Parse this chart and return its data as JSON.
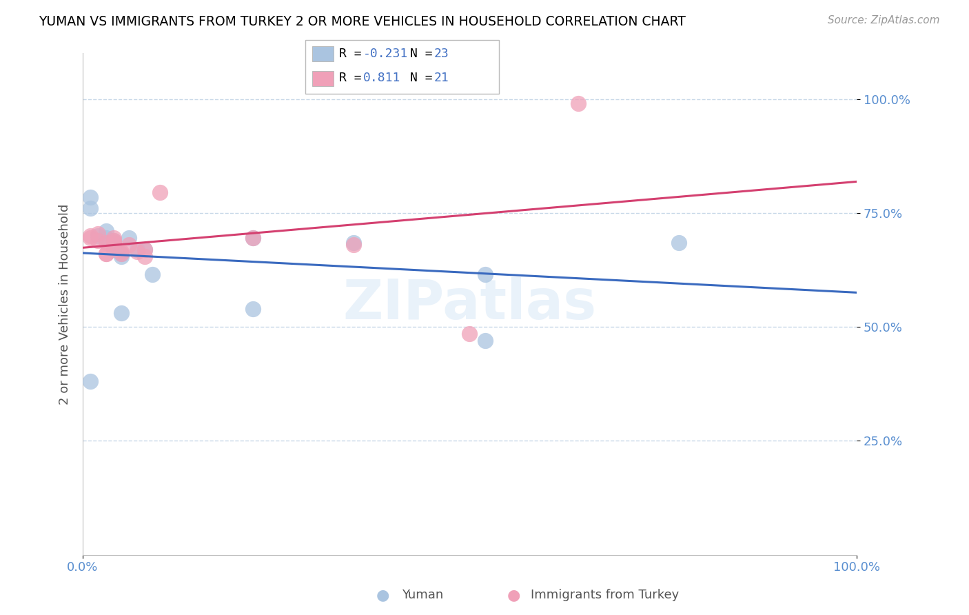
{
  "title": "YUMAN VS IMMIGRANTS FROM TURKEY 2 OR MORE VEHICLES IN HOUSEHOLD CORRELATION CHART",
  "source": "Source: ZipAtlas.com",
  "ylabel": "2 or more Vehicles in Household",
  "ytick_labels": [
    "25.0%",
    "50.0%",
    "75.0%",
    "100.0%"
  ],
  "ytick_values": [
    0.25,
    0.5,
    0.75,
    1.0
  ],
  "legend_r": [
    -0.231,
    0.811
  ],
  "legend_n": [
    23,
    21
  ],
  "blue_color": "#aac4e0",
  "pink_color": "#f0a0b8",
  "blue_line_color": "#3a6abf",
  "pink_line_color": "#d44070",
  "yuman_x": [
    0.01,
    0.01,
    0.02,
    0.03,
    0.03,
    0.04,
    0.04,
    0.04,
    0.04,
    0.05,
    0.05,
    0.06,
    0.07,
    0.08,
    0.09,
    0.22,
    0.35,
    0.52,
    0.52,
    0.77,
    0.01,
    0.05,
    0.22
  ],
  "yuman_y": [
    0.785,
    0.76,
    0.7,
    0.695,
    0.71,
    0.69,
    0.685,
    0.67,
    0.68,
    0.655,
    0.66,
    0.695,
    0.67,
    0.67,
    0.615,
    0.695,
    0.685,
    0.615,
    0.47,
    0.685,
    0.38,
    0.53,
    0.54
  ],
  "turkey_x": [
    0.01,
    0.01,
    0.02,
    0.02,
    0.03,
    0.03,
    0.04,
    0.04,
    0.04,
    0.05,
    0.05,
    0.06,
    0.07,
    0.08,
    0.08,
    0.1,
    0.22,
    0.35,
    0.5,
    0.64,
    0.03
  ],
  "turkey_y": [
    0.7,
    0.695,
    0.705,
    0.69,
    0.685,
    0.66,
    0.695,
    0.69,
    0.685,
    0.665,
    0.66,
    0.68,
    0.665,
    0.67,
    0.655,
    0.795,
    0.695,
    0.68,
    0.485,
    0.99,
    0.66
  ],
  "watermark": "ZIPatlas",
  "xlim": [
    0.0,
    1.0
  ],
  "ylim": [
    0.0,
    1.1
  ]
}
